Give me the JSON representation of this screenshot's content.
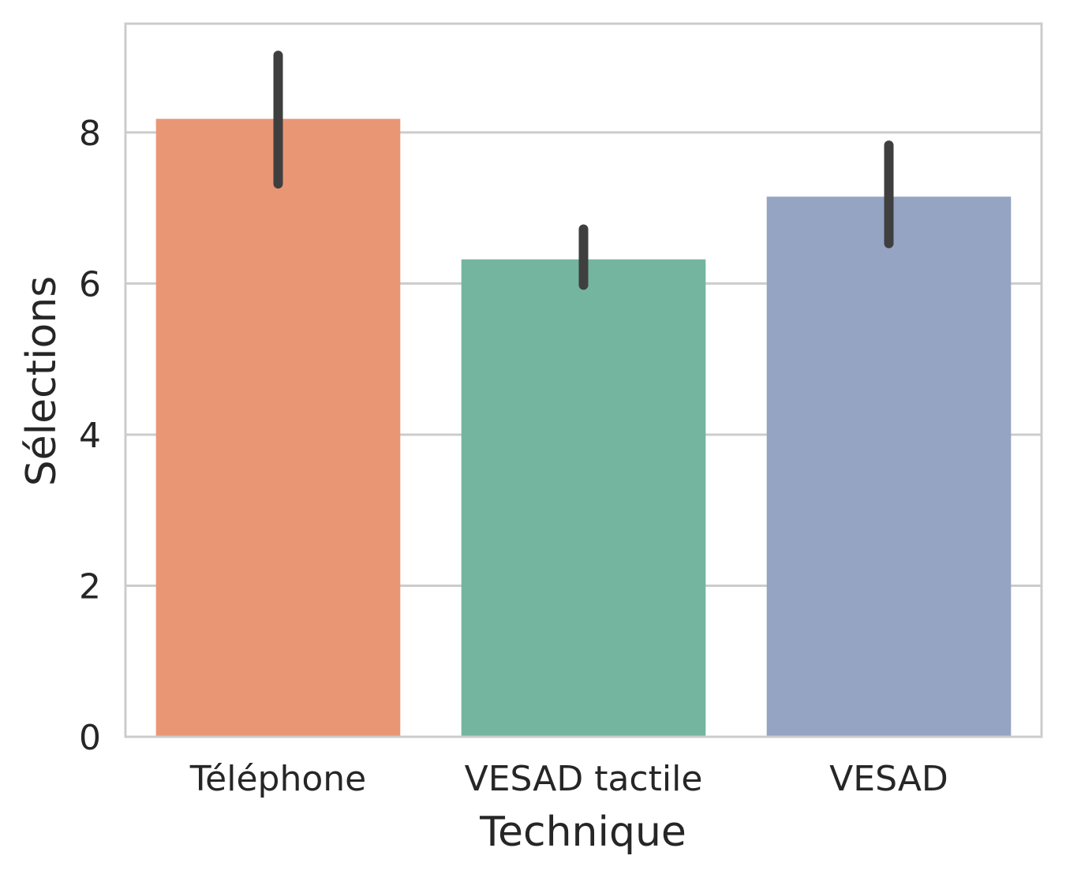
{
  "chart_data": {
    "type": "bar",
    "title": "",
    "xlabel": "Technique",
    "ylabel": "Sélections",
    "categories": [
      "Téléphone",
      "VESAD tactile",
      "VESAD"
    ],
    "values": [
      8.18,
      6.32,
      7.15
    ],
    "error_bars": [
      {
        "low": 7.32,
        "high": 9.02
      },
      {
        "low": 5.98,
        "high": 6.72
      },
      {
        "low": 6.53,
        "high": 7.83
      }
    ],
    "colors": [
      "#e99675",
      "#74b5a0",
      "#95a4c2"
    ],
    "error_bar_color": "#3f3f3f",
    "ylim": [
      0,
      9.44
    ],
    "yticks": [
      0,
      2,
      4,
      6,
      8
    ],
    "grid": "horizontal",
    "legend": "none"
  }
}
